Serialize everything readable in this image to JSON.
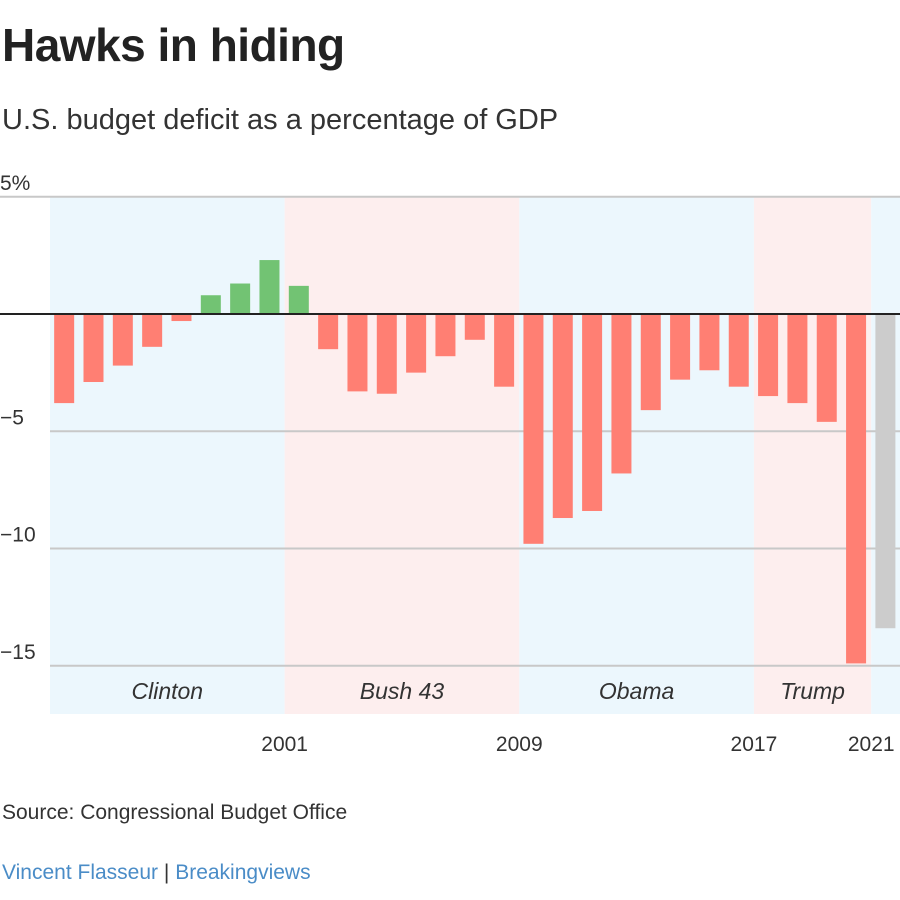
{
  "header": {
    "title": "Hawks in hiding",
    "subtitle": "U.S. budget deficit as a percentage of GDP"
  },
  "footer": {
    "source": "Source: Congressional Budget Office",
    "author": "Vincent Flasseur",
    "separator": "|",
    "publisher": "Breakingviews"
  },
  "chart_data": {
    "type": "bar",
    "title": "Hawks in hiding",
    "subtitle": "U.S. budget deficit as a percentage of GDP",
    "x": [
      1993,
      1994,
      1995,
      1996,
      1997,
      1998,
      1999,
      2000,
      2001,
      2002,
      2003,
      2004,
      2005,
      2006,
      2007,
      2008,
      2009,
      2010,
      2011,
      2012,
      2013,
      2014,
      2015,
      2016,
      2017,
      2018,
      2019,
      2020,
      2021
    ],
    "values": [
      -3.8,
      -2.9,
      -2.2,
      -1.4,
      -0.3,
      0.8,
      1.3,
      2.3,
      1.2,
      -1.5,
      -3.3,
      -3.4,
      -2.5,
      -1.8,
      -1.1,
      -3.1,
      -9.8,
      -8.7,
      -8.4,
      -6.8,
      -4.1,
      -2.8,
      -2.4,
      -3.1,
      -3.5,
      -3.8,
      -4.6,
      -14.9,
      -13.4
    ],
    "ylim": [
      -17,
      5
    ],
    "yticks": [
      {
        "value": 5,
        "label": "5%"
      },
      {
        "value": -5,
        "label": "−5"
      },
      {
        "value": -10,
        "label": "−10"
      },
      {
        "value": -15,
        "label": "−15"
      }
    ],
    "xticks": [
      {
        "value": 2001,
        "label": "2001"
      },
      {
        "value": 2009,
        "label": "2009"
      },
      {
        "value": 2017,
        "label": "2017"
      },
      {
        "value": 2021,
        "label": "2021"
      }
    ],
    "eras": [
      {
        "name": "Clinton",
        "start": 1993,
        "end": 2001,
        "party_color": "#ecf7fd"
      },
      {
        "name": "Bush 43",
        "start": 2001,
        "end": 2009,
        "party_color": "#fdeeee"
      },
      {
        "name": "Obama",
        "start": 2009,
        "end": 2017,
        "party_color": "#ecf7fd"
      },
      {
        "name": "Trump",
        "start": 2017,
        "end": 2021,
        "party_color": "#fdeeee"
      },
      {
        "name": "",
        "start": 2021,
        "end": 2022,
        "party_color": "#ecf7fd"
      }
    ],
    "colors": {
      "deficit": "#ff7f73",
      "surplus": "#72c373",
      "projection": "#cccccc"
    },
    "projection_years": [
      2021
    ],
    "grid": true
  }
}
